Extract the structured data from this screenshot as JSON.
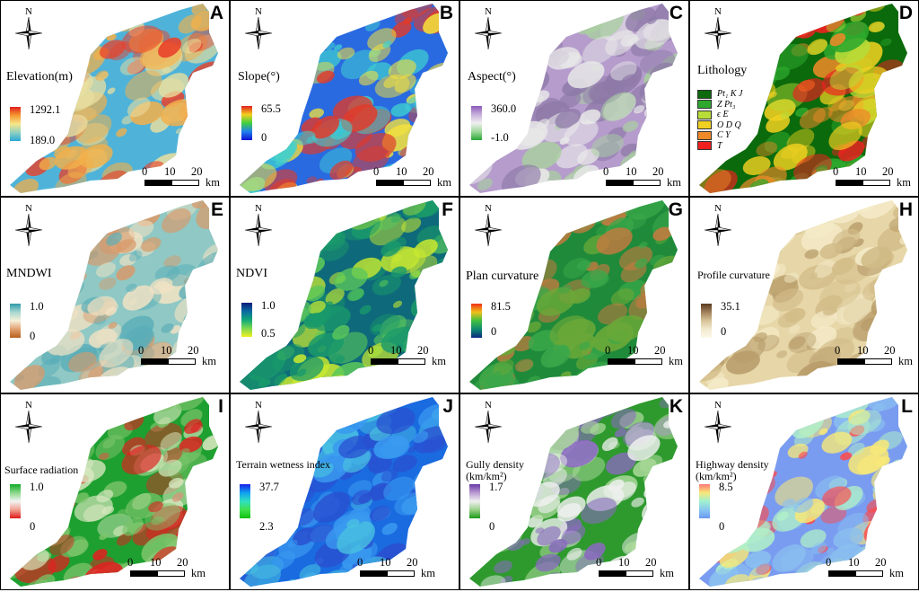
{
  "compass_letter": "N",
  "scale": {
    "t0": "0",
    "t1": "10",
    "t2": "20",
    "unit": "km"
  },
  "panels": [
    {
      "letter": "A",
      "title": "Elevation(m)",
      "max": "1292.1",
      "min": "189.0",
      "ramp": [
        "#e02020",
        "#f59a30",
        "#f7e68a",
        "#8fd0c0",
        "#2aa8d8"
      ],
      "map_colors": [
        "#4fb3d9",
        "#e8dfa0",
        "#f2b04a",
        "#e8412a"
      ]
    },
    {
      "letter": "B",
      "title": "Slope(°)",
      "max": "65.5",
      "min": "0",
      "ramp": [
        "#e02020",
        "#f5d020",
        "#40d040",
        "#2080f0",
        "#1010d0"
      ],
      "map_colors": [
        "#2a6ae0",
        "#3fd0d0",
        "#f0e040",
        "#e03a2a"
      ]
    },
    {
      "letter": "C",
      "title": "Aspect(°)",
      "max": "360.0",
      "min": "-1.0",
      "ramp": [
        "#8a5ab8",
        "#c8b0dc",
        "#f0f0f0",
        "#9fd89a",
        "#28a838"
      ],
      "map_colors": [
        "#b59ccc",
        "#e8e8e8",
        "#a9cfa0",
        "#8e7aa8"
      ]
    },
    {
      "letter": "D",
      "title": "Lithology",
      "map_colors": [
        "#0b6a0b",
        "#2ea82e",
        "#b8dc38",
        "#f0d020",
        "#f08a28",
        "#f02020"
      ],
      "lithology": [
        {
          "label": "Pt₁ K J",
          "color": "#0b6a0b"
        },
        {
          "label": "Z Pt₃",
          "color": "#2ea82e"
        },
        {
          "label": "ϵ E",
          "color": "#b8dc38"
        },
        {
          "label": "O D Q",
          "color": "#f0d020"
        },
        {
          "label": "C Y",
          "color": "#f08a28"
        },
        {
          "label": "T",
          "color": "#f02020"
        }
      ]
    },
    {
      "letter": "E",
      "title": "MNDWI",
      "max": "1.0",
      "min": "0",
      "ramp": [
        "#2e9aaa",
        "#a8d8d0",
        "#f7f0d8",
        "#e0a070",
        "#b8601e"
      ],
      "map_colors": [
        "#8fc8c4",
        "#f0e2c4",
        "#d89a6a",
        "#5aaeb8"
      ]
    },
    {
      "letter": "F",
      "title": "NDVI",
      "max": "1.0",
      "min": "0.5",
      "ramp": [
        "#0a1a7a",
        "#0a6aa0",
        "#10a87a",
        "#7ad850",
        "#f0f020"
      ],
      "map_colors": [
        "#0e6a7a",
        "#1a9a6a",
        "#5ac85a",
        "#c8e830"
      ]
    },
    {
      "letter": "G",
      "title": "Plan curvature",
      "max": "81.5",
      "min": "0",
      "ramp": [
        "#f03018",
        "#f0c018",
        "#40c040",
        "#108a70",
        "#0a2a80"
      ],
      "map_colors": [
        "#1f8a3a",
        "#3aa84a",
        "#c87a40",
        "#6aa838"
      ]
    },
    {
      "letter": "H",
      "title": "Profile curvature",
      "max": "35.1",
      "min": "0",
      "ramp": [
        "#5a3a20",
        "#a0805a",
        "#d8c498",
        "#f2ead0",
        "#fbf8e8"
      ],
      "map_colors": [
        "#e6d6a8",
        "#d2bc88",
        "#b89c6a",
        "#f4ebc8"
      ]
    },
    {
      "letter": "I",
      "title": "Surface radiation",
      "max": "1.0",
      "min": "0",
      "ramp": [
        "#10a828",
        "#8ad88a",
        "#f4f4f4",
        "#f0a090",
        "#e01818"
      ],
      "map_colors": [
        "#1ea030",
        "#7cc46a",
        "#d8e8c0",
        "#e02020"
      ]
    },
    {
      "letter": "J",
      "title": "Terrain wetness index",
      "max": "37.7",
      "min": "2.3",
      "ramp": [
        "#1820e8",
        "#10a0f0",
        "#30e0c0",
        "#40e050",
        "#10c010"
      ],
      "map_colors": [
        "#1a6ae0",
        "#3a9af0",
        "#48c0e0",
        "#2a50d0"
      ]
    },
    {
      "letter": "K",
      "title": "Gully density (km/km²)",
      "max": "1.7",
      "min": "0",
      "ramp": [
        "#6a3aa8",
        "#b89ad0",
        "#f0f0f0",
        "#9ad08a",
        "#1a9a1a"
      ],
      "map_colors": [
        "#2e9a2e",
        "#a8d898",
        "#f0f0f0",
        "#8a6ac0"
      ]
    },
    {
      "letter": "L",
      "title": "Highway density (km/km²)",
      "max": "8.5",
      "min": "0",
      "ramp": [
        "#ff7878",
        "#f8e878",
        "#a0f0d0",
        "#88c8f0",
        "#6a98f0"
      ],
      "map_colors": [
        "#7a9cf0",
        "#8ac0f0",
        "#b0f0c8",
        "#f8e878",
        "#ff4a4a"
      ]
    }
  ]
}
